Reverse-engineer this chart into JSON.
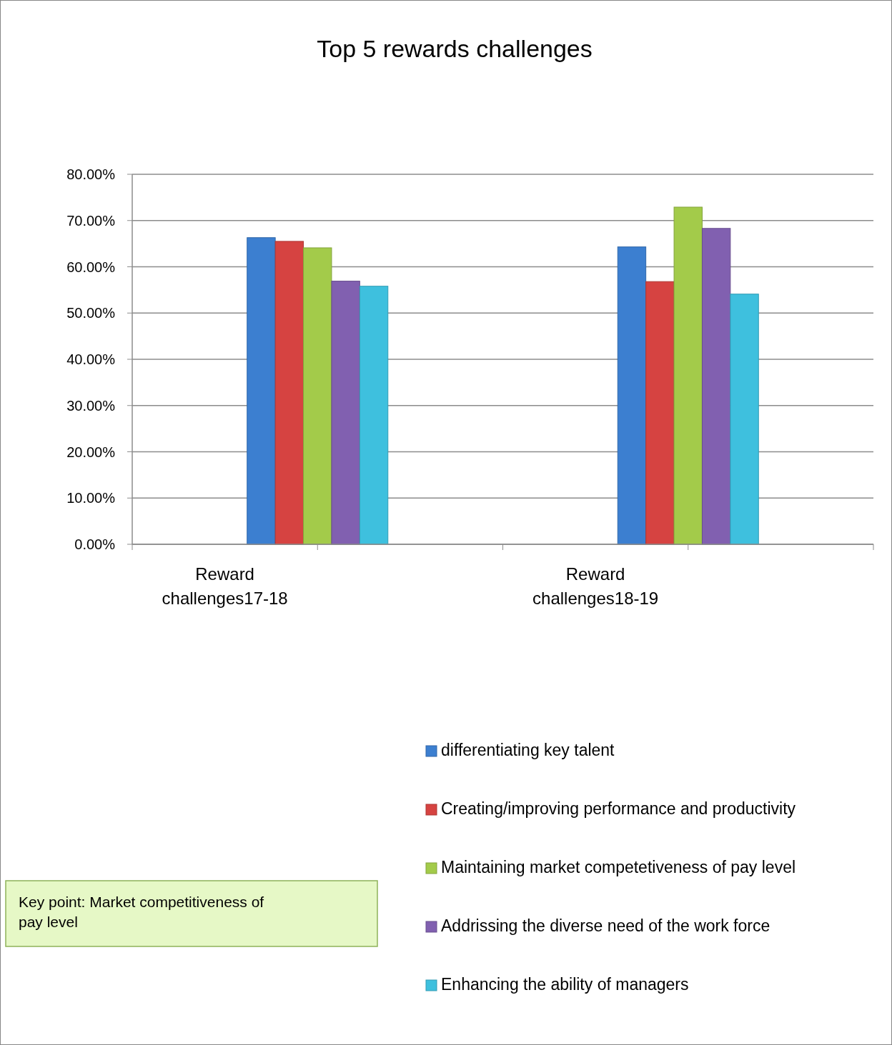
{
  "chart_data": {
    "type": "bar",
    "title": "Top 5 rewards challenges",
    "categories": [
      "Reward challenges17-18",
      "Reward challenges18-19"
    ],
    "series": [
      {
        "name": "differentiating key talent",
        "color": "#3c7fd0",
        "values": [
          66.3,
          64.3
        ]
      },
      {
        "name": "Creating/improving performance and productivity",
        "color": "#d64341",
        "values": [
          65.5,
          56.8
        ]
      },
      {
        "name": "Maintaining market competetiveness of pay level",
        "color": "#a3cb4a",
        "values": [
          64.1,
          72.9
        ]
      },
      {
        "name": "Addrissing the diverse need of the work force",
        "color": "#8160b0",
        "values": [
          56.9,
          68.3
        ]
      },
      {
        "name": "Enhancing the ability of  managers",
        "color": "#3ec0de",
        "values": [
          55.8,
          54.1
        ]
      }
    ],
    "ylim": [
      0,
      80
    ],
    "yticks": [
      {
        "value": 0,
        "label": "0.00%"
      },
      {
        "value": 10,
        "label": "10.00%"
      },
      {
        "value": 20,
        "label": "20.00%"
      },
      {
        "value": 30,
        "label": "30.00%"
      },
      {
        "value": 40,
        "label": "40.00%"
      },
      {
        "value": 50,
        "label": "50.00%"
      },
      {
        "value": 60,
        "label": "60.00%"
      },
      {
        "value": 70,
        "label": "70.00%"
      },
      {
        "value": 80,
        "label": "80.00%"
      }
    ],
    "grid": "y",
    "legend": "bottom right",
    "annotations": [
      "Key point: Market competitiveness of pay level"
    ]
  }
}
